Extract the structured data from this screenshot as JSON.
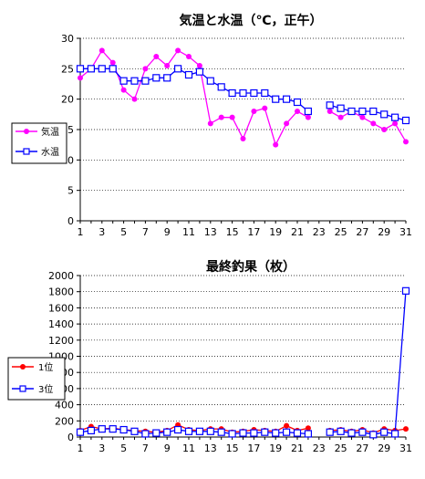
{
  "chart_data": [
    {
      "type": "line",
      "title": "気温と水温（℃，正午）",
      "xlabel": "",
      "ylabel": "",
      "x": [
        1,
        2,
        3,
        4,
        5,
        6,
        7,
        8,
        9,
        10,
        11,
        12,
        13,
        14,
        15,
        16,
        17,
        18,
        19,
        20,
        21,
        22,
        23,
        24,
        25,
        26,
        27,
        28,
        29,
        30,
        31
      ],
      "xticks": [
        1,
        3,
        5,
        7,
        9,
        11,
        13,
        15,
        17,
        19,
        21,
        23,
        25,
        27,
        29,
        31
      ],
      "ylim": [
        0,
        30
      ],
      "yticks": [
        0,
        5,
        10,
        15,
        20,
        25,
        30
      ],
      "grid": "horizontal-dotted",
      "legend_placement": "left",
      "series": [
        {
          "name": "気温",
          "color": "#ff00ff",
          "marker": "filled-circle",
          "values": [
            23.5,
            25,
            28,
            26,
            21.5,
            20,
            25,
            27,
            25.5,
            28,
            27,
            25.5,
            16,
            17,
            17,
            13.5,
            18,
            18.5,
            12.5,
            16,
            18,
            17,
            null,
            18,
            17,
            18,
            17,
            16,
            15,
            16,
            13
          ]
        },
        {
          "name": "水温",
          "color": "#0000ff",
          "marker": "open-square",
          "values": [
            25,
            25,
            25,
            25,
            23,
            23,
            23,
            23.5,
            23.5,
            25,
            24,
            24.5,
            23,
            22,
            21,
            21,
            21,
            21,
            20,
            20,
            19.5,
            18,
            null,
            19,
            18.5,
            18,
            18,
            18,
            17.5,
            17,
            16.5
          ]
        }
      ]
    },
    {
      "type": "line",
      "title": "最終釣果（枚）",
      "xlabel": "",
      "ylabel": "",
      "x": [
        1,
        2,
        3,
        4,
        5,
        6,
        7,
        8,
        9,
        10,
        11,
        12,
        13,
        14,
        15,
        16,
        17,
        18,
        19,
        20,
        21,
        22,
        23,
        24,
        25,
        26,
        27,
        28,
        29,
        30,
        31
      ],
      "xticks": [
        1,
        3,
        5,
        7,
        9,
        11,
        13,
        15,
        17,
        19,
        21,
        23,
        25,
        27,
        29,
        31
      ],
      "ylim": [
        0,
        2000
      ],
      "yticks": [
        0,
        200,
        400,
        600,
        800,
        1000,
        1200,
        1400,
        1600,
        1800,
        2000
      ],
      "grid": "horizontal-dotted",
      "legend_placement": "left",
      "series": [
        {
          "name": "1位",
          "color": "#ff0000",
          "marker": "filled-circle",
          "values": [
            80,
            130,
            100,
            110,
            90,
            80,
            70,
            60,
            80,
            150,
            90,
            80,
            100,
            100,
            60,
            70,
            90,
            80,
            70,
            140,
            80,
            110,
            null,
            80,
            90,
            70,
            90,
            50,
            100,
            80,
            100
          ]
        },
        {
          "name": "3位",
          "color": "#0000ff",
          "marker": "open-square",
          "values": [
            60,
            80,
            100,
            100,
            90,
            70,
            40,
            50,
            60,
            90,
            70,
            70,
            70,
            60,
            40,
            50,
            50,
            60,
            50,
            60,
            50,
            40,
            null,
            60,
            70,
            50,
            60,
            30,
            60,
            40,
            1810
          ]
        }
      ]
    }
  ]
}
